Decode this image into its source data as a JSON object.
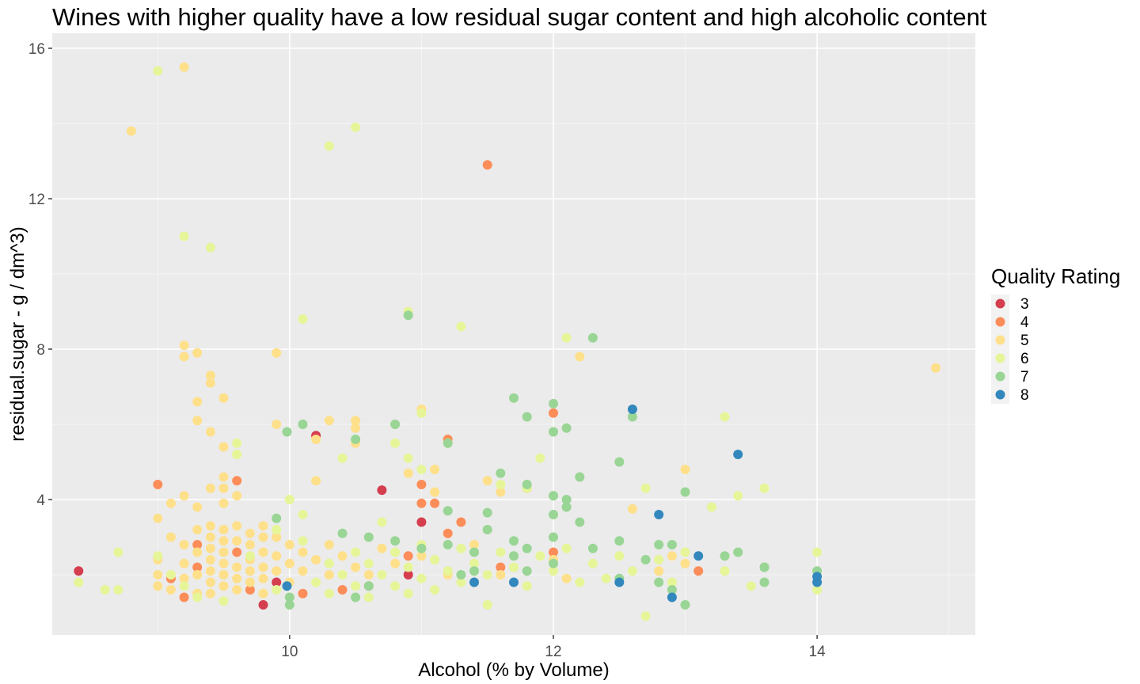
{
  "chart_data": {
    "type": "scatter",
    "title": "Wines with higher quality have a low residual sugar content and high alcoholic content",
    "xlabel": "Alcohol (% by Volume)",
    "ylabel": "residual.sugar - g / dm^3)",
    "xlim": [
      8.2,
      15.2
    ],
    "ylim": [
      0.4,
      16.4
    ],
    "x_ticks": [
      10,
      12,
      14
    ],
    "y_ticks": [
      4,
      8,
      12,
      16
    ],
    "x_tick_labels": [
      "10",
      "12",
      "14"
    ],
    "y_tick_labels": [
      "4",
      "8",
      "12",
      "16"
    ],
    "grid": true,
    "legend": {
      "title": "Quality Rating",
      "placement": "right",
      "entries": [
        {
          "label": "3",
          "color": "#d53e4f"
        },
        {
          "label": "4",
          "color": "#fc8d59"
        },
        {
          "label": "5",
          "color": "#fee08b"
        },
        {
          "label": "6",
          "color": "#e6f598"
        },
        {
          "label": "7",
          "color": "#99d594"
        },
        {
          "label": "8",
          "color": "#3288bd"
        }
      ]
    },
    "series": [
      {
        "name": "3",
        "color": "#d53e4f",
        "points": [
          [
            8.4,
            2.1
          ],
          [
            9.8,
            1.2
          ],
          [
            9.9,
            1.8
          ],
          [
            10.2,
            5.7
          ],
          [
            10.7,
            4.25
          ],
          [
            11.0,
            3.4
          ],
          [
            10.9,
            2.0
          ]
        ]
      },
      {
        "name": "4",
        "color": "#fc8d59",
        "points": [
          [
            9.0,
            4.4
          ],
          [
            9.1,
            1.9
          ],
          [
            9.2,
            1.4
          ],
          [
            9.3,
            2.2
          ],
          [
            9.3,
            2.8
          ],
          [
            9.6,
            4.5
          ],
          [
            9.6,
            2.6
          ],
          [
            9.7,
            1.6
          ],
          [
            10.1,
            1.5
          ],
          [
            10.4,
            1.6
          ],
          [
            10.6,
            1.7
          ],
          [
            10.9,
            2.5
          ],
          [
            11.0,
            3.9
          ],
          [
            11.0,
            4.4
          ],
          [
            11.1,
            3.9
          ],
          [
            11.2,
            5.6
          ],
          [
            11.2,
            3.1
          ],
          [
            11.3,
            3.4
          ],
          [
            11.5,
            12.9
          ],
          [
            11.8,
            4.3
          ],
          [
            12.0,
            6.3
          ],
          [
            12.0,
            2.6
          ],
          [
            13.1,
            2.1
          ],
          [
            11.6,
            2.2
          ]
        ]
      },
      {
        "name": "5",
        "color": "#fee08b",
        "points": [
          [
            8.8,
            13.8
          ],
          [
            9.2,
            15.5
          ],
          [
            9.2,
            8.1
          ],
          [
            9.2,
            7.8
          ],
          [
            9.3,
            7.9
          ],
          [
            9.4,
            7.3
          ],
          [
            9.4,
            7.1
          ],
          [
            9.5,
            6.7
          ],
          [
            9.3,
            6.6
          ],
          [
            9.3,
            6.1
          ],
          [
            9.4,
            5.8
          ],
          [
            9.5,
            5.4
          ],
          [
            9.6,
            5.2
          ],
          [
            9.5,
            4.6
          ],
          [
            9.4,
            4.3
          ],
          [
            9.5,
            4.3
          ],
          [
            9.6,
            4.1
          ],
          [
            9.5,
            3.9
          ],
          [
            9.2,
            4.1
          ],
          [
            9.3,
            3.8
          ],
          [
            9.1,
            3.9
          ],
          [
            9.9,
            7.9
          ],
          [
            9.9,
            6.0
          ],
          [
            10.2,
            5.6
          ],
          [
            10.2,
            4.5
          ],
          [
            10.3,
            6.1
          ],
          [
            10.5,
            6.1
          ],
          [
            10.5,
            5.9
          ],
          [
            10.5,
            5.5
          ],
          [
            11.0,
            6.4
          ],
          [
            11.1,
            4.8
          ],
          [
            11.1,
            4.2
          ],
          [
            10.9,
            4.7
          ],
          [
            11.5,
            4.5
          ],
          [
            11.6,
            4.2
          ],
          [
            12.2,
            7.8
          ],
          [
            12.6,
            3.75
          ],
          [
            13.0,
            4.8
          ],
          [
            14.9,
            7.5
          ],
          [
            9.0,
            3.5
          ],
          [
            9.1,
            3.0
          ],
          [
            9.2,
            2.8
          ],
          [
            9.0,
            2.4
          ],
          [
            9.0,
            2.0
          ],
          [
            9.0,
            1.7
          ],
          [
            9.1,
            1.6
          ],
          [
            9.2,
            2.3
          ],
          [
            9.2,
            1.9
          ],
          [
            9.3,
            3.2
          ],
          [
            9.3,
            2.6
          ],
          [
            9.3,
            2.0
          ],
          [
            9.3,
            1.5
          ],
          [
            9.4,
            3.3
          ],
          [
            9.4,
            3.0
          ],
          [
            9.4,
            2.7
          ],
          [
            9.4,
            2.4
          ],
          [
            9.4,
            2.1
          ],
          [
            9.4,
            1.8
          ],
          [
            9.4,
            1.5
          ],
          [
            9.5,
            3.2
          ],
          [
            9.5,
            2.9
          ],
          [
            9.5,
            2.6
          ],
          [
            9.5,
            2.3
          ],
          [
            9.5,
            2.0
          ],
          [
            9.5,
            1.7
          ],
          [
            9.6,
            3.3
          ],
          [
            9.6,
            2.9
          ],
          [
            9.6,
            2.2
          ],
          [
            9.6,
            1.9
          ],
          [
            9.6,
            1.6
          ],
          [
            9.7,
            3.1
          ],
          [
            9.7,
            2.8
          ],
          [
            9.7,
            2.4
          ],
          [
            9.7,
            2.1
          ],
          [
            9.7,
            1.8
          ],
          [
            9.8,
            3.3
          ],
          [
            9.8,
            3.0
          ],
          [
            9.8,
            2.6
          ],
          [
            9.8,
            2.2
          ],
          [
            9.8,
            1.9
          ],
          [
            9.8,
            1.5
          ],
          [
            9.9,
            3.0
          ],
          [
            9.9,
            2.5
          ],
          [
            9.9,
            2.1
          ],
          [
            10.0,
            2.8
          ],
          [
            10.0,
            2.3
          ],
          [
            10.0,
            1.8
          ],
          [
            10.1,
            2.6
          ],
          [
            10.1,
            2.1
          ],
          [
            10.2,
            2.4
          ],
          [
            10.3,
            2.8
          ],
          [
            10.3,
            2.0
          ],
          [
            10.4,
            2.5
          ],
          [
            10.5,
            2.2
          ],
          [
            10.6,
            2.0
          ],
          [
            10.7,
            2.7
          ],
          [
            10.8,
            2.3
          ],
          [
            11.0,
            2.5
          ],
          [
            11.2,
            2.0
          ],
          [
            11.4,
            2.8
          ],
          [
            11.6,
            2.0
          ],
          [
            12.0,
            2.4
          ],
          [
            12.1,
            1.9
          ],
          [
            12.8,
            2.1
          ],
          [
            12.9,
            2.5
          ],
          [
            13.0,
            2.3
          ]
        ]
      },
      {
        "name": "6",
        "color": "#e6f598",
        "points": [
          [
            9.0,
            15.4
          ],
          [
            10.5,
            13.9
          ],
          [
            10.3,
            13.4
          ],
          [
            9.2,
            11.0
          ],
          [
            9.4,
            10.7
          ],
          [
            10.9,
            9.0
          ],
          [
            10.1,
            8.8
          ],
          [
            11.3,
            8.6
          ],
          [
            12.1,
            8.3
          ],
          [
            9.6,
            5.5
          ],
          [
            9.6,
            5.2
          ],
          [
            10.4,
            5.1
          ],
          [
            10.8,
            5.5
          ],
          [
            10.9,
            5.1
          ],
          [
            11.0,
            4.8
          ],
          [
            11.0,
            6.3
          ],
          [
            11.2,
            5.5
          ],
          [
            11.6,
            4.4
          ],
          [
            11.9,
            5.1
          ],
          [
            11.8,
            4.3
          ],
          [
            12.7,
            4.3
          ],
          [
            13.2,
            3.8
          ],
          [
            13.3,
            6.2
          ],
          [
            13.4,
            4.1
          ],
          [
            13.6,
            4.3
          ],
          [
            9.9,
            3.2
          ],
          [
            10.0,
            4.0
          ],
          [
            10.1,
            3.6
          ],
          [
            8.4,
            1.8
          ],
          [
            8.6,
            1.6
          ],
          [
            8.7,
            1.6
          ],
          [
            8.7,
            2.6
          ],
          [
            12.7,
            0.9
          ],
          [
            13.3,
            2.1
          ],
          [
            13.5,
            1.7
          ],
          [
            14.0,
            2.6
          ],
          [
            14.0,
            1.6
          ],
          [
            9.0,
            2.5
          ],
          [
            9.1,
            2.0
          ],
          [
            9.2,
            1.7
          ],
          [
            9.3,
            1.4
          ],
          [
            9.5,
            1.3
          ],
          [
            9.7,
            2.5
          ],
          [
            9.9,
            1.6
          ],
          [
            10.0,
            1.4
          ],
          [
            10.1,
            2.9
          ],
          [
            10.2,
            1.8
          ],
          [
            10.3,
            2.3
          ],
          [
            10.3,
            1.5
          ],
          [
            10.4,
            2.0
          ],
          [
            10.5,
            2.6
          ],
          [
            10.5,
            1.7
          ],
          [
            10.6,
            2.3
          ],
          [
            10.6,
            1.4
          ],
          [
            10.7,
            2.0
          ],
          [
            10.7,
            3.4
          ],
          [
            10.8,
            2.6
          ],
          [
            10.8,
            1.7
          ],
          [
            10.9,
            2.2
          ],
          [
            10.9,
            1.5
          ],
          [
            11.0,
            2.8
          ],
          [
            11.0,
            1.9
          ],
          [
            11.1,
            2.4
          ],
          [
            11.1,
            1.6
          ],
          [
            11.2,
            2.1
          ],
          [
            11.3,
            2.7
          ],
          [
            11.3,
            1.8
          ],
          [
            11.4,
            2.3
          ],
          [
            11.5,
            2.0
          ],
          [
            11.5,
            1.2
          ],
          [
            11.6,
            2.6
          ],
          [
            11.7,
            2.2
          ],
          [
            11.8,
            1.7
          ],
          [
            11.9,
            2.5
          ],
          [
            12.0,
            2.1
          ],
          [
            12.1,
            2.7
          ],
          [
            12.2,
            1.8
          ],
          [
            12.3,
            2.3
          ],
          [
            12.4,
            1.9
          ],
          [
            12.5,
            2.5
          ],
          [
            12.6,
            2.1
          ],
          [
            12.8,
            2.4
          ],
          [
            12.9,
            1.8
          ],
          [
            13.0,
            2.6
          ]
        ]
      },
      {
        "name": "7",
        "color": "#99d594",
        "points": [
          [
            10.9,
            8.9
          ],
          [
            12.3,
            8.3
          ],
          [
            11.7,
            6.7
          ],
          [
            12.0,
            6.55
          ],
          [
            12.6,
            6.2
          ],
          [
            10.1,
            6.0
          ],
          [
            10.8,
            6.0
          ],
          [
            9.98,
            5.8
          ],
          [
            12.0,
            5.8
          ],
          [
            12.1,
            5.9
          ],
          [
            10.5,
            5.6
          ],
          [
            11.2,
            5.5
          ],
          [
            11.8,
            6.2
          ],
          [
            11.6,
            4.7
          ],
          [
            11.8,
            4.4
          ],
          [
            12.5,
            5.0
          ],
          [
            12.2,
            4.6
          ],
          [
            12.0,
            4.1
          ],
          [
            12.1,
            4.0
          ],
          [
            12.1,
            3.8
          ],
          [
            11.5,
            3.65
          ],
          [
            11.2,
            3.7
          ],
          [
            12.0,
            3.6
          ],
          [
            12.2,
            3.4
          ],
          [
            13.0,
            4.2
          ],
          [
            9.9,
            3.5
          ],
          [
            10.4,
            3.1
          ],
          [
            10.6,
            3.0
          ],
          [
            10.8,
            2.9
          ],
          [
            11.0,
            2.7
          ],
          [
            11.2,
            2.8
          ],
          [
            11.4,
            2.6
          ],
          [
            11.5,
            3.2
          ],
          [
            11.7,
            2.9
          ],
          [
            11.8,
            2.7
          ],
          [
            12.0,
            3.0
          ],
          [
            12.3,
            2.7
          ],
          [
            12.5,
            2.9
          ],
          [
            12.7,
            2.4
          ],
          [
            12.8,
            2.8
          ],
          [
            12.9,
            2.8
          ],
          [
            13.3,
            2.5
          ],
          [
            13.4,
            2.6
          ],
          [
            13.6,
            2.2
          ],
          [
            13.6,
            1.8
          ],
          [
            13.6,
            2.2
          ],
          [
            14.0,
            2.1
          ],
          [
            13.0,
            1.2
          ],
          [
            12.9,
            1.6
          ],
          [
            12.8,
            1.8
          ],
          [
            12.5,
            1.9
          ],
          [
            10.0,
            1.2
          ],
          [
            10.0,
            1.4
          ],
          [
            10.5,
            1.4
          ],
          [
            10.6,
            1.7
          ],
          [
            11.3,
            2.0
          ],
          [
            11.7,
            2.5
          ],
          [
            12.0,
            2.3
          ],
          [
            11.4,
            2.1
          ],
          [
            11.8,
            2.1
          ]
        ]
      },
      {
        "name": "8",
        "color": "#3288bd",
        "points": [
          [
            12.6,
            6.4
          ],
          [
            13.4,
            5.2
          ],
          [
            12.8,
            3.6
          ],
          [
            13.1,
            2.5
          ],
          [
            9.98,
            1.7
          ],
          [
            11.4,
            1.8
          ],
          [
            11.7,
            1.8
          ],
          [
            12.5,
            1.8
          ],
          [
            12.9,
            1.4
          ],
          [
            14.0,
            1.8
          ],
          [
            14.0,
            1.95
          ]
        ]
      }
    ]
  }
}
